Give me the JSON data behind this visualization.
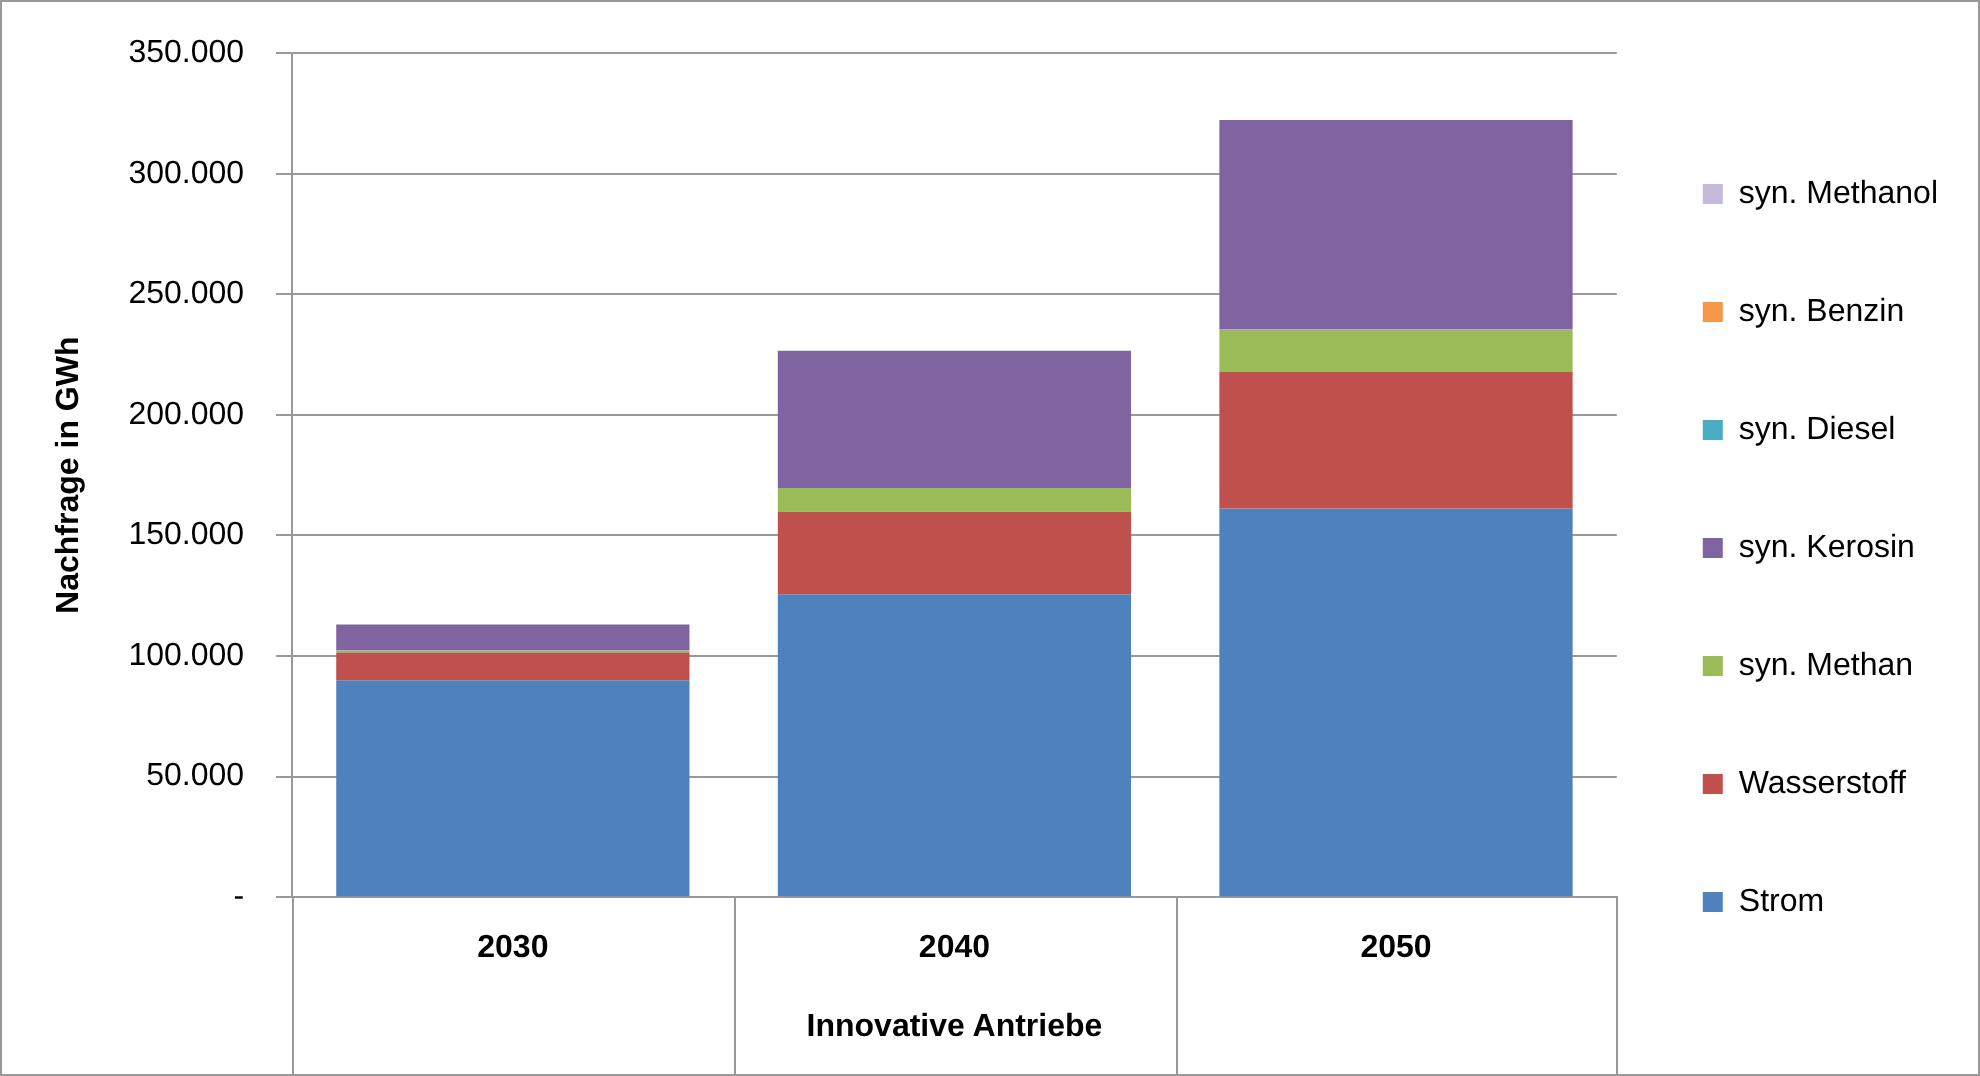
{
  "chart_data": {
    "type": "bar",
    "stacked": true,
    "ylabel": "Nachfrage in GWh",
    "xlabel": "Innovative Antriebe",
    "categories": [
      "2030",
      "2040",
      "2050"
    ],
    "series": [
      {
        "name": "Strom",
        "color": "#4f81bd",
        "values": [
          90000,
          125600,
          161200
        ]
      },
      {
        "name": "Wasserstoff",
        "color": "#c0504d",
        "values": [
          11500,
          34200,
          56600
        ]
      },
      {
        "name": "syn. Methan",
        "color": "#9bbb59",
        "values": [
          800,
          9900,
          17600
        ]
      },
      {
        "name": "syn. Kerosin",
        "color": "#8064a2",
        "values": [
          10800,
          56900,
          86900
        ]
      },
      {
        "name": "syn. Diesel",
        "color": "#4bacc6",
        "values": [
          0,
          0,
          0
        ]
      },
      {
        "name": "syn. Benzin",
        "color": "#f79646",
        "values": [
          0,
          0,
          0
        ]
      },
      {
        "name": "syn. Methanol",
        "color": "#c5b9d9",
        "values": [
          0,
          0,
          0
        ]
      }
    ],
    "ylim": [
      0,
      350000
    ],
    "yticks": [
      {
        "value": 0,
        "label": "-"
      },
      {
        "value": 50000,
        "label": "50.000"
      },
      {
        "value": 100000,
        "label": "100.000"
      },
      {
        "value": 150000,
        "label": "150.000"
      },
      {
        "value": 200000,
        "label": "200.000"
      },
      {
        "value": 250000,
        "label": "250.000"
      },
      {
        "value": 300000,
        "label": "300.000"
      },
      {
        "value": 350000,
        "label": "350.000"
      }
    ],
    "grid": "y",
    "legend": "right"
  }
}
